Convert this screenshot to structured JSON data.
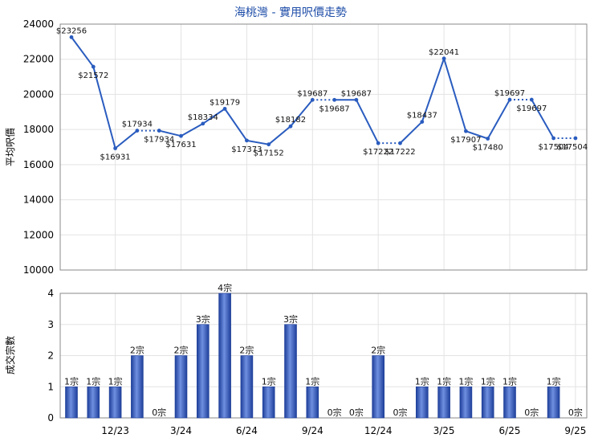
{
  "title": "海桃灣 - 實用呎價走勢",
  "chart_data": [
    {
      "type": "line",
      "ylabel": "平均呎價",
      "ylim": [
        10000,
        24000
      ],
      "yticks": [
        10000,
        12000,
        14000,
        16000,
        18000,
        20000,
        22000,
        24000
      ],
      "points": [
        {
          "label": "$23256",
          "value": 23256,
          "dashed": false
        },
        {
          "label": "$21572",
          "value": 21572,
          "dashed": false
        },
        {
          "label": "$16931",
          "value": 16931,
          "dashed": false
        },
        {
          "label": "$17934",
          "value": 17934,
          "dashed": false
        },
        {
          "label": "$17934",
          "value": 17934,
          "dashed": true
        },
        {
          "label": "$17631",
          "value": 17631,
          "dashed": false
        },
        {
          "label": "$18334",
          "value": 18334,
          "dashed": false
        },
        {
          "label": "$19179",
          "value": 19179,
          "dashed": false
        },
        {
          "label": "$17373",
          "value": 17373,
          "dashed": false
        },
        {
          "label": "$17152",
          "value": 17152,
          "dashed": false
        },
        {
          "label": "$18182",
          "value": 18182,
          "dashed": false
        },
        {
          "label": "$19687",
          "value": 19687,
          "dashed": false
        },
        {
          "label": "$19687",
          "value": 19687,
          "dashed": true
        },
        {
          "label": "$19687",
          "value": 19687,
          "dashed": false
        },
        {
          "label": "$17222",
          "value": 17222,
          "dashed": false
        },
        {
          "label": "$17222",
          "value": 17222,
          "dashed": true
        },
        {
          "label": "$18437",
          "value": 18437,
          "dashed": false
        },
        {
          "label": "$22041",
          "value": 22041,
          "dashed": false
        },
        {
          "label": "$17907",
          "value": 17907,
          "dashed": false
        },
        {
          "label": "$17480",
          "value": 17480,
          "dashed": false
        },
        {
          "label": "$19697",
          "value": 19697,
          "dashed": false
        },
        {
          "label": "$19697",
          "value": 19697,
          "dashed": true
        },
        {
          "label": "$17504",
          "value": 17504,
          "dashed": false
        },
        {
          "label": "$17504",
          "value": 17504,
          "dashed": true
        }
      ]
    },
    {
      "type": "bar",
      "ylabel": "成交宗數",
      "ylim": [
        0,
        4
      ],
      "yticks": [
        0,
        1,
        2,
        3,
        4
      ],
      "unit": "宗",
      "values": [
        1,
        1,
        1,
        2,
        0,
        2,
        3,
        4,
        2,
        1,
        3,
        1,
        0,
        0,
        2,
        0,
        1,
        1,
        1,
        1,
        1,
        0,
        1,
        0
      ],
      "labels": [
        "1宗",
        "1宗",
        "1宗",
        "2宗",
        "0宗",
        "2宗",
        "3宗",
        "4宗",
        "2宗",
        "1宗",
        "3宗",
        "1宗",
        "0宗",
        "0宗",
        "2宗",
        "0宗",
        "1宗",
        "1宗",
        "1宗",
        "1宗",
        "1宗",
        "0宗",
        "1宗",
        "0宗"
      ]
    }
  ],
  "x_axis": {
    "ticks": [
      {
        "index": 2,
        "label": "12/23"
      },
      {
        "index": 5,
        "label": "3/24"
      },
      {
        "index": 8,
        "label": "6/24"
      },
      {
        "index": 11,
        "label": "9/24"
      },
      {
        "index": 14,
        "label": "12/24"
      },
      {
        "index": 17,
        "label": "3/25"
      },
      {
        "index": 20,
        "label": "6/25"
      },
      {
        "index": 23,
        "label": "9/25"
      }
    ]
  },
  "colors": {
    "line": "#2a5cbf",
    "bar": "#3a63c8",
    "title": "#1f4ea8"
  }
}
